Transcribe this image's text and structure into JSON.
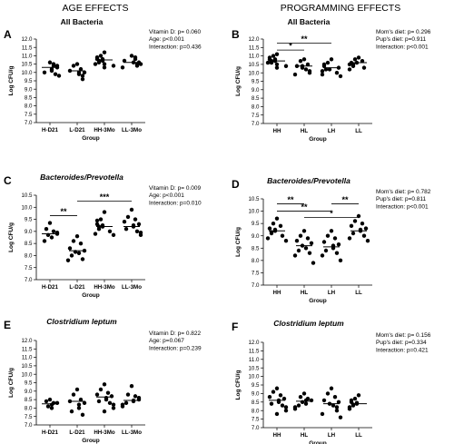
{
  "headers": {
    "left": "AGE EFFECTS",
    "right": "PROGRAMMING EFFECTS"
  },
  "chart_data": [
    {
      "type": "scatter",
      "panel": "A",
      "title": "All Bacteria",
      "title_italic": false,
      "ylabel": "Log CFU/g",
      "xlabel": "Group",
      "ylim": [
        7.0,
        12.0
      ],
      "yticks": [
        7.0,
        7.5,
        8.0,
        8.5,
        9.0,
        9.5,
        10.0,
        10.5,
        11.0,
        11.5,
        12.0
      ],
      "categories": [
        "H-D21",
        "L-D21",
        "HH-3Mo",
        "LL-3Mo"
      ],
      "points": [
        [
          10.6,
          10.5,
          10.4,
          10.4,
          10.3,
          10.2,
          10.1,
          10.0,
          9.9,
          9.8
        ],
        [
          10.5,
          10.4,
          10.2,
          10.1,
          10.0,
          10.0,
          9.9,
          9.8,
          9.6
        ],
        [
          11.2,
          11.0,
          10.9,
          10.8,
          10.8,
          10.7,
          10.7,
          10.6,
          10.5,
          10.5,
          10.4,
          10.3
        ],
        [
          11.0,
          10.9,
          10.8,
          10.7,
          10.6,
          10.6,
          10.5,
          10.5,
          10.4,
          10.3
        ]
      ],
      "means": [
        10.3,
        10.1,
        10.75,
        10.6
      ],
      "stats": [
        "Vitamin D: p= 0.060",
        "Age: p<0.001",
        "Interaction: p=0.436"
      ],
      "brackets": []
    },
    {
      "type": "scatter",
      "panel": "B",
      "title": "All Bacteria",
      "title_italic": false,
      "ylabel": "Log CFU/g",
      "xlabel": "Group",
      "ylim": [
        7.0,
        12.0
      ],
      "yticks": [
        7.0,
        7.5,
        8.0,
        8.5,
        9.0,
        9.5,
        10.0,
        10.5,
        11.0,
        11.5,
        12.0
      ],
      "categories": [
        "HH",
        "HL",
        "LH",
        "LL"
      ],
      "points": [
        [
          11.1,
          11.0,
          10.9,
          10.8,
          10.8,
          10.7,
          10.7,
          10.6,
          10.6,
          10.5,
          10.4,
          10.3
        ],
        [
          10.8,
          10.7,
          10.5,
          10.4,
          10.4,
          10.3,
          10.2,
          10.1,
          10.0,
          9.9
        ],
        [
          10.8,
          10.6,
          10.5,
          10.4,
          10.3,
          10.2,
          10.2,
          10.1,
          10.0,
          9.9,
          9.8
        ],
        [
          10.9,
          10.8,
          10.7,
          10.6,
          10.6,
          10.5,
          10.5,
          10.4,
          10.3,
          10.2
        ]
      ],
      "means": [
        10.7,
        10.4,
        10.3,
        10.6
      ],
      "stats": [
        "Mom's diet: p= 0.296",
        "Pup's diet: p=0.911",
        "Interaction: p<0.001"
      ],
      "brackets": [
        {
          "from": 0,
          "to": 1,
          "y": 11.35,
          "label": "*"
        },
        {
          "from": 0,
          "to": 2,
          "y": 11.75,
          "label": "**"
        }
      ]
    },
    {
      "type": "scatter",
      "panel": "C",
      "title": "Bacteroides/Prevotella",
      "title_italic": true,
      "ylabel": "Log CFU/g",
      "xlabel": "Group",
      "ylim": [
        7.0,
        10.5
      ],
      "yticks": [
        7.0,
        7.5,
        8.0,
        8.5,
        9.0,
        9.5,
        10.0,
        10.5
      ],
      "categories": [
        "H-D21",
        "L-D21",
        "HH-3Mo",
        "LL-3Mo"
      ],
      "points": [
        [
          9.35,
          9.1,
          9.0,
          8.95,
          8.9,
          8.85,
          8.75,
          8.6
        ],
        [
          8.8,
          8.6,
          8.5,
          8.3,
          8.2,
          8.15,
          8.1,
          8.0,
          7.85,
          7.8
        ],
        [
          9.8,
          9.5,
          9.45,
          9.3,
          9.25,
          9.2,
          9.2,
          9.1,
          9.0,
          8.9,
          8.85
        ],
        [
          9.9,
          9.6,
          9.5,
          9.4,
          9.3,
          9.25,
          9.2,
          9.1,
          9.0,
          8.95,
          8.85
        ]
      ],
      "means": [
        8.9,
        8.2,
        9.2,
        9.2
      ],
      "stats": [
        "Vitamin D: p= 0.009",
        "Age: p<0.001",
        "Interaction: p=0.010"
      ],
      "brackets": [
        {
          "from": 0,
          "to": 1,
          "y": 9.65,
          "label": "**"
        },
        {
          "from": 1,
          "to": 3,
          "y": 10.25,
          "label": "***"
        }
      ]
    },
    {
      "type": "scatter",
      "panel": "D",
      "title": "Bacteroides/Prevotella",
      "title_italic": true,
      "ylabel": "Log CFU/g",
      "xlabel": "Group",
      "ylim": [
        7.0,
        10.5
      ],
      "yticks": [
        7.0,
        7.5,
        8.0,
        8.5,
        9.0,
        9.5,
        10.0,
        10.5
      ],
      "categories": [
        "HH",
        "HL",
        "LH",
        "LL"
      ],
      "points": [
        [
          9.7,
          9.5,
          9.4,
          9.3,
          9.25,
          9.2,
          9.15,
          9.1,
          9.0,
          8.9,
          8.8
        ],
        [
          9.2,
          9.0,
          8.9,
          8.8,
          8.7,
          8.6,
          8.5,
          8.4,
          8.3,
          8.2,
          7.9
        ],
        [
          9.2,
          9.0,
          8.9,
          8.75,
          8.65,
          8.6,
          8.5,
          8.4,
          8.3,
          8.2,
          8.0
        ],
        [
          9.8,
          9.6,
          9.5,
          9.4,
          9.3,
          9.25,
          9.2,
          9.1,
          9.0,
          8.9,
          8.8
        ]
      ],
      "means": [
        9.2,
        8.6,
        8.55,
        9.2
      ],
      "stats": [
        "Mom's diet: p= 0.782",
        "Pup's diet: p=0.811",
        "Interaction: p<0.001"
      ],
      "brackets": [
        {
          "from": 0,
          "to": 1,
          "y": 10.3,
          "label": "**"
        },
        {
          "from": 2,
          "to": 3,
          "y": 10.3,
          "label": "**"
        },
        {
          "from": 0,
          "to": 2,
          "y": 10.0,
          "label": "**"
        },
        {
          "from": 1,
          "to": 3,
          "y": 9.75,
          "label": "*"
        }
      ]
    },
    {
      "type": "scatter",
      "panel": "E",
      "title": "Clostridium leptum",
      "title_italic": true,
      "ylabel": "Log CFU/g",
      "xlabel": "Group",
      "ylim": [
        7.0,
        12.0
      ],
      "yticks": [
        7.0,
        7.5,
        8.0,
        8.5,
        9.0,
        9.5,
        10.0,
        10.5,
        11.0,
        11.5,
        12.0
      ],
      "categories": [
        "H-D21",
        "L-D21",
        "HH-3Mo",
        "LL-3Mo"
      ],
      "points": [
        [
          8.5,
          8.4,
          8.3,
          8.3,
          8.2,
          8.1,
          8.0
        ],
        [
          9.1,
          8.8,
          8.5,
          8.4,
          8.3,
          8.2,
          8.0,
          7.8,
          7.6
        ],
        [
          9.4,
          9.1,
          8.9,
          8.8,
          8.7,
          8.6,
          8.5,
          8.4,
          8.3,
          8.2,
          8.0,
          7.8
        ],
        [
          9.3,
          8.8,
          8.7,
          8.6,
          8.5,
          8.45,
          8.4,
          8.3,
          8.2,
          8.1
        ]
      ],
      "means": [
        8.25,
        8.4,
        8.65,
        8.45
      ],
      "stats": [
        "Vitamin D: p= 0.822",
        "Age: p=0.067",
        "Interaction: p=0.239"
      ],
      "brackets": []
    },
    {
      "type": "scatter",
      "panel": "F",
      "title": "Clostridium leptum",
      "title_italic": true,
      "ylabel": "Log CFU/g",
      "xlabel": "Group",
      "ylim": [
        7.0,
        12.0
      ],
      "yticks": [
        7.0,
        7.5,
        8.0,
        8.5,
        9.0,
        9.5,
        10.0,
        10.5,
        11.0,
        11.5,
        12.0
      ],
      "categories": [
        "HH",
        "HL",
        "LH",
        "LL"
      ],
      "points": [
        [
          9.3,
          9.1,
          8.9,
          8.8,
          8.7,
          8.6,
          8.5,
          8.4,
          8.3,
          8.2,
          8.0,
          7.8
        ],
        [
          9.0,
          8.8,
          8.7,
          8.6,
          8.6,
          8.5,
          8.4,
          8.3,
          8.2,
          8.1
        ],
        [
          9.3,
          9.0,
          8.8,
          8.6,
          8.5,
          8.4,
          8.3,
          8.2,
          8.0,
          7.8,
          7.6
        ],
        [
          8.9,
          8.7,
          8.6,
          8.5,
          8.45,
          8.4,
          8.35,
          8.3,
          8.2,
          8.1
        ]
      ],
      "means": [
        8.6,
        8.55,
        8.4,
        8.4
      ],
      "stats": [
        "Mom's diet: p= 0.156",
        "Pup's diet: p=0.334",
        "Interaction: p=0.421"
      ],
      "brackets": []
    }
  ]
}
